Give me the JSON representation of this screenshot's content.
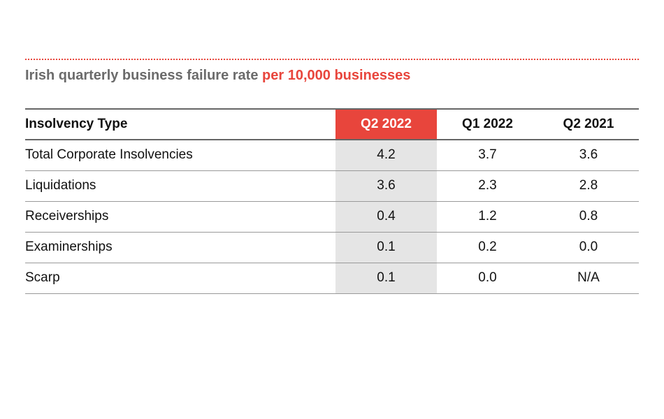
{
  "title": {
    "main": "Irish quarterly business failure rate",
    "highlight": "per 10,000 businesses"
  },
  "colors": {
    "accent": "#e8453c",
    "title_gray": "#6b6b6b",
    "current_column_bg": "#e5e5e5"
  },
  "table": {
    "headers": [
      "Insolvency Type",
      "Q2 2022",
      "Q1 2022",
      "Q2 2021"
    ],
    "rows": [
      [
        "Total Corporate Insolvencies",
        "4.2",
        "3.7",
        "3.6"
      ],
      [
        "Liquidations",
        "3.6",
        "2.3",
        "2.8"
      ],
      [
        "Receiverships",
        "0.4",
        "1.2",
        "0.8"
      ],
      [
        "Examinerships",
        "0.1",
        "0.2",
        "0.0"
      ],
      [
        "Scarp",
        "0.1",
        "0.0",
        "N/A"
      ]
    ]
  }
}
